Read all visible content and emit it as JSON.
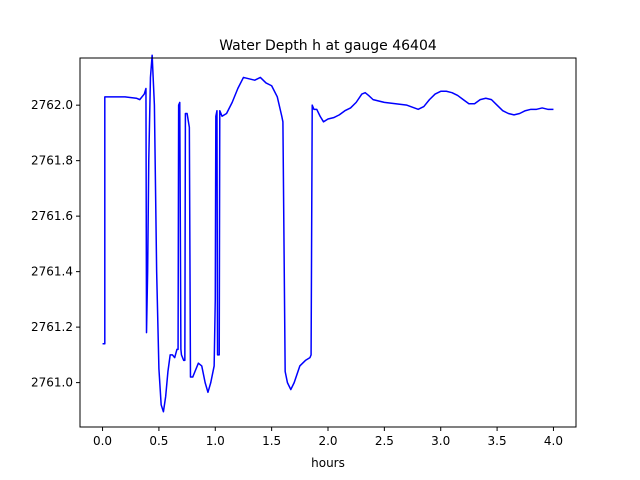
{
  "chart_data": {
    "type": "line",
    "title": "Water Depth h at gauge 46404",
    "xlabel": "hours",
    "ylabel": "",
    "xlim": [
      -0.2,
      4.2
    ],
    "ylim": [
      2760.84,
      2762.17
    ],
    "xticks": [
      0.0,
      0.5,
      1.0,
      1.5,
      2.0,
      2.5,
      3.0,
      3.5,
      4.0
    ],
    "xtick_labels": [
      "0.0",
      "0.5",
      "1.0",
      "1.5",
      "2.0",
      "2.5",
      "3.0",
      "3.5",
      "4.0"
    ],
    "yticks": [
      2761.0,
      2761.2,
      2761.4,
      2761.6,
      2761.8,
      2762.0
    ],
    "ytick_labels": [
      "2761.0",
      "2761.2",
      "2761.4",
      "2761.6",
      "2761.8",
      "2762.0"
    ],
    "grid": false,
    "series": [
      {
        "color": "#0000ff",
        "points": [
          [
            0.0,
            2761.14
          ],
          [
            0.02,
            2761.14
          ],
          [
            0.02,
            2762.03
          ],
          [
            0.1,
            2762.03
          ],
          [
            0.2,
            2762.03
          ],
          [
            0.3,
            2762.025
          ],
          [
            0.33,
            2762.02
          ],
          [
            0.37,
            2762.04
          ],
          [
            0.385,
            2762.06
          ],
          [
            0.39,
            2761.18
          ],
          [
            0.4,
            2761.4
          ],
          [
            0.41,
            2761.8
          ],
          [
            0.425,
            2762.1
          ],
          [
            0.44,
            2762.18
          ],
          [
            0.46,
            2762.0
          ],
          [
            0.48,
            2761.4
          ],
          [
            0.5,
            2761.05
          ],
          [
            0.52,
            2760.92
          ],
          [
            0.54,
            2760.895
          ],
          [
            0.56,
            2760.95
          ],
          [
            0.58,
            2761.04
          ],
          [
            0.6,
            2761.1
          ],
          [
            0.62,
            2761.1
          ],
          [
            0.64,
            2761.09
          ],
          [
            0.66,
            2761.12
          ],
          [
            0.67,
            2761.12
          ],
          [
            0.675,
            2762.0
          ],
          [
            0.685,
            2762.01
          ],
          [
            0.695,
            2761.12
          ],
          [
            0.7,
            2761.1
          ],
          [
            0.72,
            2761.08
          ],
          [
            0.73,
            2761.08
          ],
          [
            0.735,
            2761.97
          ],
          [
            0.75,
            2761.97
          ],
          [
            0.77,
            2761.92
          ],
          [
            0.78,
            2761.02
          ],
          [
            0.8,
            2761.02
          ],
          [
            0.82,
            2761.04
          ],
          [
            0.85,
            2761.07
          ],
          [
            0.88,
            2761.06
          ],
          [
            0.91,
            2761.0
          ],
          [
            0.935,
            2760.965
          ],
          [
            0.96,
            2761.0
          ],
          [
            0.99,
            2761.06
          ],
          [
            1.0,
            2761.3
          ],
          [
            1.005,
            2761.96
          ],
          [
            1.015,
            2761.98
          ],
          [
            1.02,
            2761.1
          ],
          [
            1.035,
            2761.1
          ],
          [
            1.04,
            2761.98
          ],
          [
            1.06,
            2761.96
          ],
          [
            1.1,
            2761.97
          ],
          [
            1.15,
            2762.01
          ],
          [
            1.2,
            2762.06
          ],
          [
            1.25,
            2762.1
          ],
          [
            1.3,
            2762.095
          ],
          [
            1.35,
            2762.09
          ],
          [
            1.4,
            2762.1
          ],
          [
            1.45,
            2762.08
          ],
          [
            1.5,
            2762.07
          ],
          [
            1.55,
            2762.03
          ],
          [
            1.59,
            2761.96
          ],
          [
            1.6,
            2761.94
          ],
          [
            1.62,
            2761.04
          ],
          [
            1.64,
            2761.0
          ],
          [
            1.67,
            2760.975
          ],
          [
            1.7,
            2761.0
          ],
          [
            1.75,
            2761.06
          ],
          [
            1.8,
            2761.08
          ],
          [
            1.84,
            2761.09
          ],
          [
            1.85,
            2761.1
          ],
          [
            1.86,
            2762.0
          ],
          [
            1.875,
            2761.985
          ],
          [
            1.9,
            2761.985
          ],
          [
            1.93,
            2761.96
          ],
          [
            1.96,
            2761.94
          ],
          [
            2.0,
            2761.95
          ],
          [
            2.05,
            2761.955
          ],
          [
            2.1,
            2761.965
          ],
          [
            2.15,
            2761.98
          ],
          [
            2.2,
            2761.99
          ],
          [
            2.25,
            2762.01
          ],
          [
            2.3,
            2762.04
          ],
          [
            2.33,
            2762.045
          ],
          [
            2.36,
            2762.035
          ],
          [
            2.4,
            2762.02
          ],
          [
            2.5,
            2762.01
          ],
          [
            2.6,
            2762.005
          ],
          [
            2.7,
            2762.0
          ],
          [
            2.8,
            2761.985
          ],
          [
            2.85,
            2761.995
          ],
          [
            2.9,
            2762.02
          ],
          [
            2.95,
            2762.04
          ],
          [
            3.0,
            2762.05
          ],
          [
            3.05,
            2762.05
          ],
          [
            3.1,
            2762.045
          ],
          [
            3.15,
            2762.035
          ],
          [
            3.2,
            2762.02
          ],
          [
            3.25,
            2762.005
          ],
          [
            3.3,
            2762.005
          ],
          [
            3.35,
            2762.02
          ],
          [
            3.4,
            2762.025
          ],
          [
            3.45,
            2762.02
          ],
          [
            3.5,
            2762.0
          ],
          [
            3.55,
            2761.98
          ],
          [
            3.6,
            2761.97
          ],
          [
            3.65,
            2761.965
          ],
          [
            3.7,
            2761.97
          ],
          [
            3.75,
            2761.98
          ],
          [
            3.8,
            2761.985
          ],
          [
            3.85,
            2761.985
          ],
          [
            3.9,
            2761.99
          ],
          [
            3.95,
            2761.985
          ],
          [
            4.0,
            2761.985
          ]
        ]
      }
    ]
  }
}
